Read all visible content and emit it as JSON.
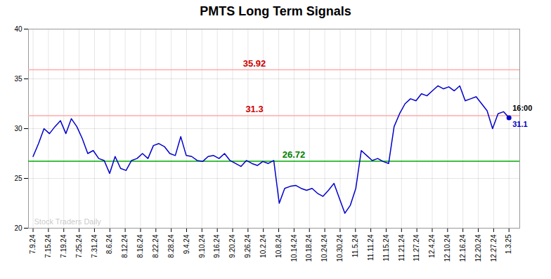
{
  "chart_data": {
    "type": "line",
    "title": "PMTS Long Term Signals",
    "color": "#0000cc",
    "x": [
      0,
      0.3563,
      0.7126,
      1.069,
      1.4253,
      1.7816,
      2.1379,
      2.4943,
      2.8506,
      3.2069,
      3.5632,
      3.9195,
      4.2759,
      4.6322,
      4.9885,
      5.3448,
      5.7011,
      6.0575,
      6.4138,
      6.7701,
      7.1264,
      7.4828,
      7.8391,
      8.1954,
      8.5517,
      8.908,
      9.2644,
      9.6207,
      9.977,
      10.3333,
      10.6897,
      11.046,
      11.4023,
      11.7586,
      12.1149,
      12.4713,
      12.8276,
      13.1839,
      13.5402,
      13.8966,
      14.2529,
      14.6092,
      14.9655,
      15.3218,
      15.6782,
      16.0345,
      16.3908,
      16.7471,
      17.1034,
      17.4598,
      17.8161,
      18.1724,
      18.5287,
      18.8851,
      19.2414,
      19.5977,
      19.954,
      20.3103,
      20.6667,
      21.023,
      21.3793,
      21.7356,
      22.092,
      22.4483,
      22.8046,
      23.1609,
      23.5172,
      23.8736,
      24.2299,
      24.5862,
      24.9425,
      25.2989,
      25.6552,
      26.0115,
      26.3678,
      26.7241,
      27.0805,
      27.4368,
      27.7931,
      28.1494,
      28.5057,
      28.8621,
      29.2184,
      29.5747,
      29.931,
      30.2874,
      30.6437,
      31
    ],
    "values": [
      27.2,
      28.5,
      30.0,
      29.5,
      30.2,
      30.8,
      29.5,
      31.0,
      30.2,
      29.0,
      27.5,
      27.8,
      27.0,
      26.8,
      25.5,
      27.2,
      26.0,
      25.8,
      26.8,
      27.0,
      27.5,
      27.0,
      28.3,
      28.5,
      28.2,
      27.5,
      27.3,
      29.2,
      27.3,
      27.2,
      26.8,
      26.7,
      27.2,
      27.3,
      27.0,
      27.5,
      26.8,
      26.5,
      26.2,
      26.8,
      26.5,
      26.3,
      26.7,
      26.5,
      26.8,
      22.5,
      24.0,
      24.2,
      24.3,
      24.0,
      23.8,
      24.0,
      23.5,
      23.2,
      23.8,
      24.5,
      23.0,
      21.5,
      22.3,
      24.0,
      27.8,
      27.3,
      26.8,
      27.0,
      26.7,
      26.5,
      30.2,
      31.5,
      32.5,
      33.0,
      32.8,
      33.5,
      33.3,
      33.8,
      34.3,
      34.0,
      34.2,
      33.8,
      34.3,
      32.8,
      33.0,
      33.2,
      32.5,
      31.8,
      30.0,
      31.5,
      31.7,
      31.1
    ],
    "xlim": [
      -0.3,
      31.7
    ],
    "xticks": [
      {
        "value": 0,
        "label": "7.9.24"
      },
      {
        "value": 1,
        "label": "7.15.24"
      },
      {
        "value": 2,
        "label": "7.19.24"
      },
      {
        "value": 3,
        "label": "7.25.24"
      },
      {
        "value": 4,
        "label": "7.31.24"
      },
      {
        "value": 5,
        "label": "8.6.24"
      },
      {
        "value": 6,
        "label": "8.12.24"
      },
      {
        "value": 7,
        "label": "8.16.24"
      },
      {
        "value": 8,
        "label": "8.22.24"
      },
      {
        "value": 9,
        "label": "8.28.24"
      },
      {
        "value": 10,
        "label": "9.4.24"
      },
      {
        "value": 11,
        "label": "9.10.24"
      },
      {
        "value": 12,
        "label": "9.16.24"
      },
      {
        "value": 13,
        "label": "9.20.24"
      },
      {
        "value": 14,
        "label": "9.26.24"
      },
      {
        "value": 15,
        "label": "10.2.24"
      },
      {
        "value": 16,
        "label": "10.8.24"
      },
      {
        "value": 17,
        "label": "10.14.24"
      },
      {
        "value": 18,
        "label": "10.18.24"
      },
      {
        "value": 19,
        "label": "10.24.24"
      },
      {
        "value": 20,
        "label": "10.30.24"
      },
      {
        "value": 21,
        "label": "11.5.24"
      },
      {
        "value": 22,
        "label": "11.11.24"
      },
      {
        "value": 23,
        "label": "11.15.24"
      },
      {
        "value": 24,
        "label": "11.21.24"
      },
      {
        "value": 25,
        "label": "11.27.24"
      },
      {
        "value": 26,
        "label": "12.4.24"
      },
      {
        "value": 27,
        "label": "12.10.24"
      },
      {
        "value": 28,
        "label": "12.16.24"
      },
      {
        "value": 29,
        "label": "12.20.24"
      },
      {
        "value": 30,
        "label": "12.27.24"
      },
      {
        "value": 31,
        "label": "1.3.25"
      }
    ],
    "ylim": [
      20,
      40
    ],
    "yticks": [
      20,
      25,
      30,
      35,
      40
    ],
    "grid": true,
    "hlines": [
      {
        "value": 26.72,
        "label": "26.72",
        "color": "#00aa00",
        "label_color": "green"
      },
      {
        "value": 31.3,
        "label": "31.3",
        "color": "#ffaaaa",
        "label_color": "#cc0000"
      },
      {
        "value": 35.92,
        "label": "35.92",
        "color": "#ffaaaa",
        "label_color": "#cc0000"
      }
    ],
    "end_point": {
      "x": 31,
      "y": 31.1,
      "time_label": "16:00",
      "value_label": "31.1"
    },
    "watermark": "Stock Traders Daily"
  }
}
